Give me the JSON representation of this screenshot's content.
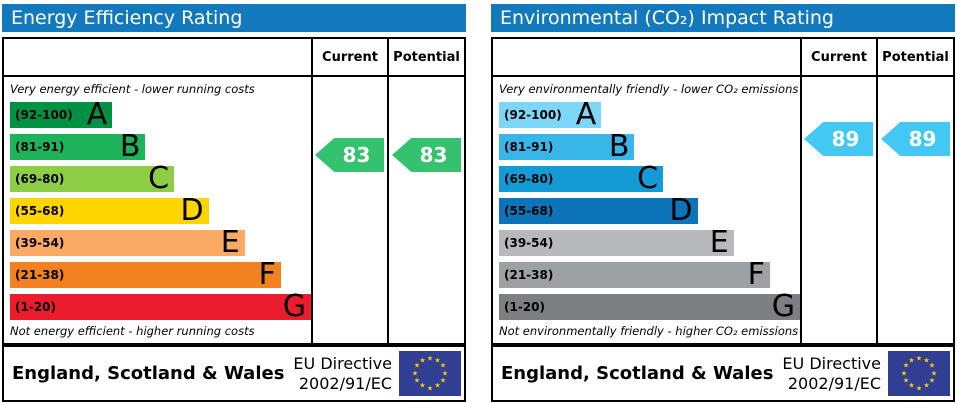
{
  "chart_data": [
    {
      "type": "bar",
      "title": "Energy Efficiency Rating",
      "header_color": "#1379bd",
      "columns": {
        "current": "Current",
        "potential": "Potential"
      },
      "top_caption": "Very energy efficient - lower running costs",
      "bottom_caption": "Not energy efficient - higher running costs",
      "bands": [
        {
          "letter": "A",
          "label": "(92-100)",
          "min": 92,
          "max": 100,
          "color": "#009143",
          "width_pct": 34
        },
        {
          "letter": "B",
          "label": "(81-91)",
          "min": 81,
          "max": 91,
          "color": "#1eb35b",
          "width_pct": 45
        },
        {
          "letter": "C",
          "label": "(69-80)",
          "min": 69,
          "max": 80,
          "color": "#8dce46",
          "width_pct": 54.5
        },
        {
          "letter": "D",
          "label": "(55-68)",
          "min": 55,
          "max": 68,
          "color": "#ffd500",
          "width_pct": 66
        },
        {
          "letter": "E",
          "label": "(39-54)",
          "min": 39,
          "max": 54,
          "color": "#fbaa65",
          "width_pct": 78
        },
        {
          "letter": "F",
          "label": "(21-38)",
          "min": 21,
          "max": 38,
          "color": "#f18121",
          "width_pct": 90
        },
        {
          "letter": "G",
          "label": "(1-20)",
          "min": 1,
          "max": 20,
          "color": "#ea1c2d",
          "width_pct": 100
        }
      ],
      "current": {
        "value": 83,
        "band": "B",
        "color": "#35c26f"
      },
      "potential": {
        "value": 83,
        "band": "B",
        "color": "#35c26f"
      },
      "footer": {
        "region": "England, Scotland & Wales",
        "directive": [
          "EU Directive",
          "2002/91/EC"
        ],
        "flag": {
          "name": "eu-flag",
          "background": "#303f94",
          "star_color": "#ffcc00"
        }
      }
    },
    {
      "type": "bar",
      "title": "Environmental (CO₂) Impact Rating",
      "header_color": "#1379bd",
      "columns": {
        "current": "Current",
        "potential": "Potential"
      },
      "top_caption": "Very environmentally friendly - lower CO₂ emissions",
      "bottom_caption": "Not environmentally friendly - higher CO₂ emissions",
      "bands": [
        {
          "letter": "A",
          "label": "(92-100)",
          "min": 92,
          "max": 100,
          "color": "#7ed6f6",
          "width_pct": 34
        },
        {
          "letter": "B",
          "label": "(81-91)",
          "min": 81,
          "max": 91,
          "color": "#39b6e8",
          "width_pct": 45
        },
        {
          "letter": "C",
          "label": "(69-80)",
          "min": 69,
          "max": 80,
          "color": "#149ad5",
          "width_pct": 54.5
        },
        {
          "letter": "D",
          "label": "(55-68)",
          "min": 55,
          "max": 68,
          "color": "#0d74ba",
          "width_pct": 66
        },
        {
          "letter": "E",
          "label": "(39-54)",
          "min": 39,
          "max": 54,
          "color": "#b7b9bb",
          "width_pct": 78
        },
        {
          "letter": "F",
          "label": "(21-38)",
          "min": 21,
          "max": 38,
          "color": "#9ea1a4",
          "width_pct": 90
        },
        {
          "letter": "G",
          "label": "(1-20)",
          "min": 1,
          "max": 20,
          "color": "#7d7f82",
          "width_pct": 100
        }
      ],
      "current": {
        "value": 89,
        "band": "B",
        "color": "#42c8f3"
      },
      "potential": {
        "value": 89,
        "band": "B",
        "color": "#42c8f3"
      },
      "footer": {
        "region": "England, Scotland & Wales",
        "directive": [
          "EU Directive",
          "2002/91/EC"
        ],
        "flag": {
          "name": "eu-flag",
          "background": "#303f94",
          "star_color": "#ffcc00"
        }
      }
    }
  ]
}
